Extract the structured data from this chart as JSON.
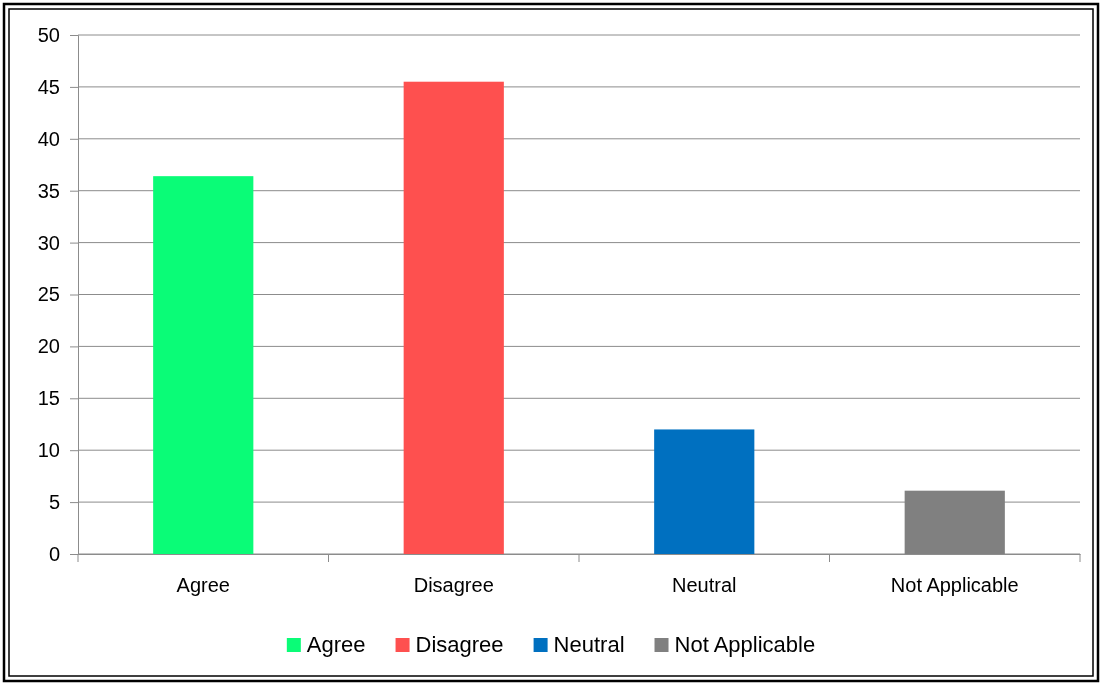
{
  "chart_data": {
    "type": "bar",
    "categories": [
      "Agree",
      "Disagree",
      "Neutral",
      "Not Applicable"
    ],
    "series": [
      {
        "name": "Agree",
        "color": "#0afc77",
        "values": [
          36.4,
          null,
          null,
          null
        ]
      },
      {
        "name": "Disagree",
        "color": "#fe504f",
        "values": [
          null,
          45.5,
          null,
          null
        ]
      },
      {
        "name": "Neutral",
        "color": "#0070c0",
        "values": [
          null,
          null,
          12.0,
          null
        ]
      },
      {
        "name": "Not Applicable",
        "color": "#808080",
        "values": [
          null,
          null,
          null,
          6.1
        ]
      }
    ],
    "ylim": [
      0,
      50
    ],
    "yticks": [
      0,
      5,
      10,
      15,
      20,
      25,
      30,
      35,
      40,
      45,
      50
    ],
    "grid": "y",
    "legend": "bottom"
  }
}
